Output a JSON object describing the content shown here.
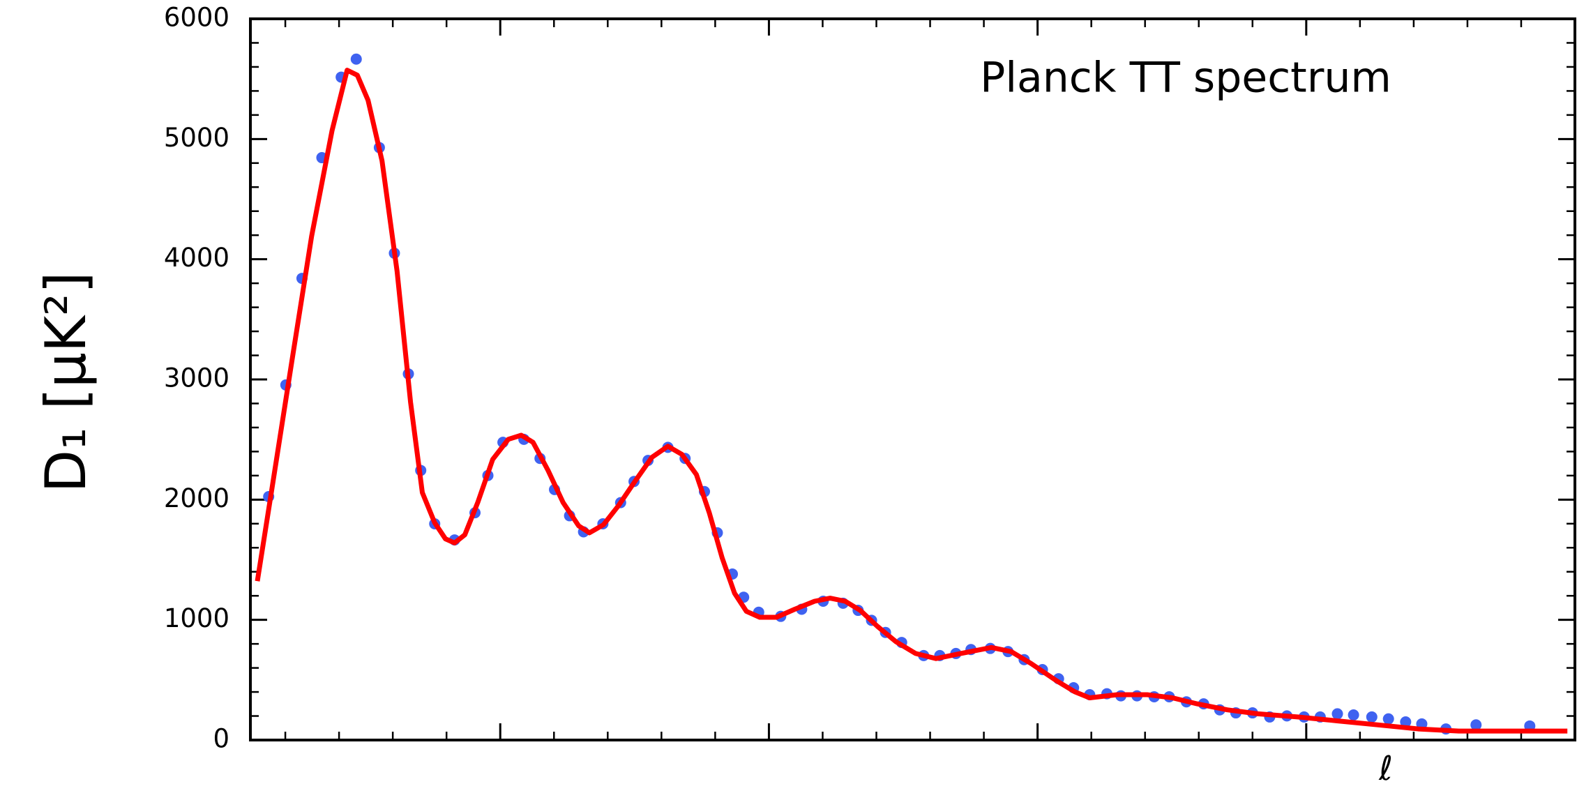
{
  "chart_data": {
    "type": "scatter",
    "annotation": "Planck TT spectrum",
    "ylabel": "D₁ [μK²]",
    "xlabel": "ℓ",
    "xlim": [
      35,
      2500
    ],
    "xticks": [
      500,
      1000,
      1500,
      2000
    ],
    "ylim": [
      0,
      6000
    ],
    "yticks": [
      0,
      1000,
      2000,
      3000,
      4000,
      5000,
      6000
    ],
    "series": [
      {
        "type": "scatter",
        "color": "#3f62f0",
        "x": [
          69,
          101,
          131,
          168,
          204,
          232,
          275,
          303,
          329,
          352,
          378,
          415,
          453,
          477,
          505,
          544,
          574,
          601,
          629,
          655,
          691,
          724,
          749,
          775,
          812,
          844,
          880,
          904,
          932,
          953,
          981,
          1022,
          1061,
          1101,
          1138,
          1166,
          1191,
          1217,
          1247,
          1288,
          1318,
          1348,
          1376,
          1412,
          1445,
          1475,
          1509,
          1539,
          1567,
          1597,
          1629,
          1655,
          1685,
          1717,
          1745,
          1777,
          1809,
          1839,
          1869,
          1900,
          1932,
          1964,
          1996,
          2026,
          2058,
          2088,
          2122,
          2153,
          2185,
          2215,
          2260,
          2316,
          2416
        ],
        "values": [
          2025,
          2954,
          3841,
          4845,
          5515,
          5665,
          4929,
          4050,
          3046,
          2243,
          1799,
          1665,
          1891,
          2201,
          2477,
          2502,
          2343,
          2084,
          1866,
          1732,
          1799,
          1975,
          2151,
          2326,
          2435,
          2343,
          2067,
          1724,
          1381,
          1188,
          1063,
          1029,
          1088,
          1155,
          1138,
          1079,
          996,
          895,
          812,
          703,
          703,
          720,
          753,
          762,
          736,
          669,
          586,
          510,
          435,
          377,
          385,
          368,
          368,
          360,
          360,
          318,
          301,
          251,
          226,
          226,
          192,
          201,
          192,
          192,
          218,
          209,
          192,
          176,
          151,
          134,
          92,
          126,
          117
        ]
      },
      {
        "type": "line",
        "color": "#ff0000",
        "x": [
          48,
          74,
          112,
          149,
          187,
          215,
          234,
          254,
          280,
          308,
          333,
          355,
          378,
          398,
          415,
          434,
          458,
          486,
          515,
          539,
          561,
          589,
          617,
          646,
          666,
          692,
          720,
          749,
          782,
          812,
          838,
          865,
          889,
          913,
          936,
          958,
          983,
          1014,
          1048,
          1085,
          1114,
          1142,
          1170,
          1202,
          1236,
          1273,
          1311,
          1357,
          1414,
          1451,
          1488,
          1535,
          1569,
          1597,
          1648,
          1704,
          1751,
          1797,
          1853,
          1910,
          1984,
          2059,
          2134,
          2209,
          2284,
          2359,
          2434,
          2486
        ],
        "values": [
          1322,
          2059,
          3146,
          4192,
          5071,
          5573,
          5531,
          5322,
          4820,
          3900,
          2812,
          2059,
          1808,
          1674,
          1640,
          1707,
          1975,
          2335,
          2502,
          2536,
          2477,
          2243,
          1975,
          1782,
          1724,
          1791,
          1950,
          2142,
          2351,
          2444,
          2377,
          2209,
          1891,
          1515,
          1222,
          1071,
          1021,
          1021,
          1088,
          1155,
          1180,
          1155,
          1079,
          946,
          820,
          720,
          678,
          720,
          770,
          736,
          636,
          494,
          402,
          351,
          377,
          377,
          351,
          301,
          251,
          218,
          192,
          159,
          126,
          92,
          75,
          75,
          75,
          75
        ]
      }
    ]
  }
}
